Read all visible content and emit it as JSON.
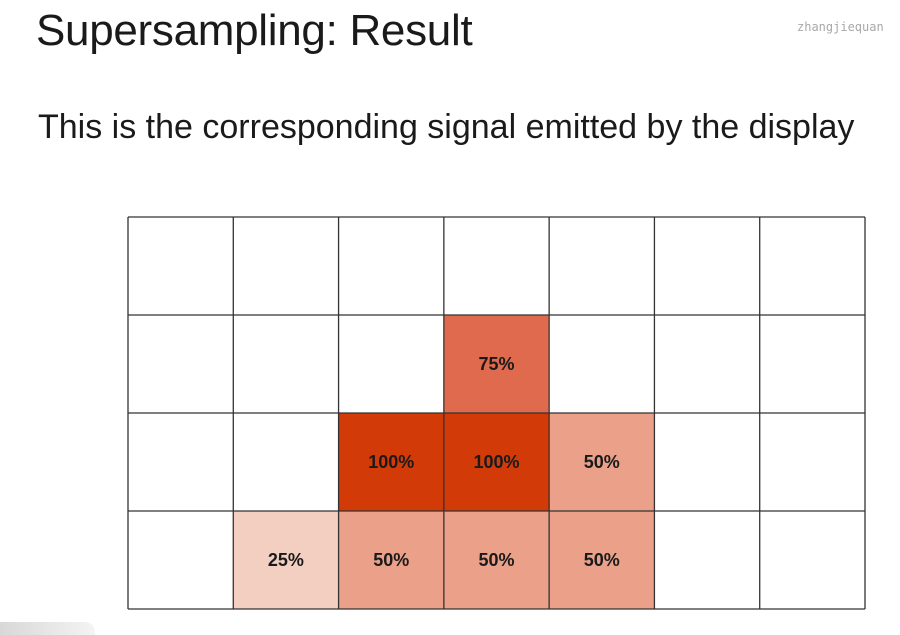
{
  "slide": {
    "title": "Supersampling: Result",
    "subtitle": "This is the corresponding signal emitted by the display",
    "watermark": "zhangjiequan"
  },
  "grid": {
    "columns": 7,
    "rows": 4,
    "colors": {
      "full": "#d23a07",
      "75": "#e06a4d",
      "50": "#eaa089",
      "25": "#f3cfc2",
      "empty": "#ffffff",
      "line": "#333333"
    },
    "filled_cells": [
      {
        "row": 1,
        "col": 3,
        "coverage": 75,
        "label": "75%"
      },
      {
        "row": 2,
        "col": 2,
        "coverage": 100,
        "label": "100%"
      },
      {
        "row": 2,
        "col": 3,
        "coverage": 100,
        "label": "100%"
      },
      {
        "row": 2,
        "col": 4,
        "coverage": 50,
        "label": "50%"
      },
      {
        "row": 3,
        "col": 1,
        "coverage": 25,
        "label": "25%"
      },
      {
        "row": 3,
        "col": 2,
        "coverage": 50,
        "label": "50%"
      },
      {
        "row": 3,
        "col": 3,
        "coverage": 50,
        "label": "50%"
      },
      {
        "row": 3,
        "col": 4,
        "coverage": 50,
        "label": "50%"
      }
    ]
  }
}
